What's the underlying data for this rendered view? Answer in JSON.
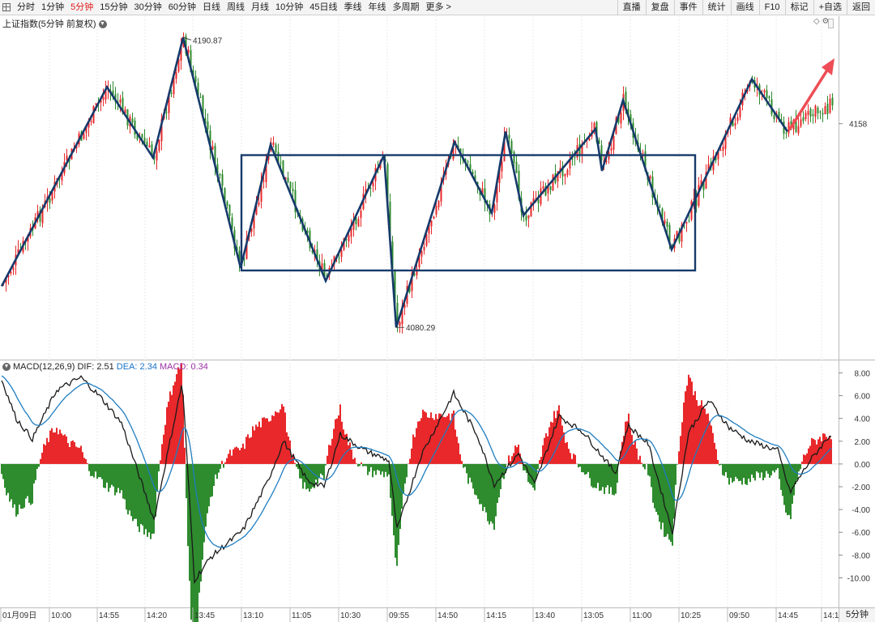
{
  "toolbar": {
    "periods": [
      {
        "label": "分时",
        "active": false
      },
      {
        "label": "1分钟",
        "active": false
      },
      {
        "label": "5分钟",
        "active": true
      },
      {
        "label": "15分钟",
        "active": false
      },
      {
        "label": "30分钟",
        "active": false
      },
      {
        "label": "60分钟",
        "active": false
      },
      {
        "label": "日线",
        "active": false
      },
      {
        "label": "周线",
        "active": false
      },
      {
        "label": "月线",
        "active": false
      },
      {
        "label": "10分钟",
        "active": false
      },
      {
        "label": "45日线",
        "active": false
      },
      {
        "label": "季线",
        "active": false
      },
      {
        "label": "年线",
        "active": false
      },
      {
        "label": "多周期",
        "active": false
      },
      {
        "label": "更多 >",
        "active": false
      }
    ],
    "tools": [
      "直播",
      "复盘",
      "事件",
      "统计",
      "画线",
      "F10",
      "标记",
      "+自选",
      "返回"
    ]
  },
  "main_panel": {
    "title": "上证指数(5分钟 前复权)",
    "high_label": "4190.87",
    "low_label": "4080.29",
    "price_axis_label": "4158"
  },
  "macd_panel": {
    "title": "MACD(12,26,9)",
    "dif_text": "DIF: 2.51",
    "dea_text": "DEA: 2.34",
    "macd_text": "MACD: 0.34"
  },
  "bottom_right_label": "5分钟",
  "colors": {
    "up": "#e8282b",
    "down": "#2e8b2e",
    "dif": "#1a1a1a",
    "dea": "#1f7ec1",
    "zigzag": "#163a6b",
    "box": "#163a6b",
    "arrow": "#ee4d55"
  },
  "chart_data": [
    {
      "type": "candlestick",
      "title": "上证指数(5分钟 前复权)",
      "ylim": [
        4068,
        4199
      ],
      "y_ticks": [
        4158
      ],
      "annotations": [
        {
          "text": "4190.87",
          "x": "14:20",
          "y": 4190.87
        },
        {
          "text": "4080.29",
          "x": "09:55",
          "y": 4080.29
        }
      ],
      "zigzag": [
        {
          "x": "01月09日",
          "y": 4096
        },
        {
          "x": "14:55",
          "y": 4172
        },
        {
          "x": "14:20",
          "y": 4145
        },
        {
          "x": "14:20",
          "y": 4190.87
        },
        {
          "x": "13:10",
          "y": 4103
        },
        {
          "x": "13:10",
          "y": 4150
        },
        {
          "x": "11:05",
          "y": 4098
        },
        {
          "x": "10:30",
          "y": 4146
        },
        {
          "x": "09:55",
          "y": 4080.29
        },
        {
          "x": "14:50",
          "y": 4151
        },
        {
          "x": "14:15",
          "y": 4124
        },
        {
          "x": "14:15",
          "y": 4155
        },
        {
          "x": "13:40",
          "y": 4123
        },
        {
          "x": "13:05",
          "y": 4156
        },
        {
          "x": "13:05",
          "y": 4140
        },
        {
          "x": "13:05",
          "y": 4167
        },
        {
          "x": "10:25",
          "y": 4110
        },
        {
          "x": "09:50",
          "y": 4175
        },
        {
          "x": "14:45",
          "y": 4155
        }
      ],
      "range_box": {
        "x_from": "13:10",
        "x_to": "10:25",
        "y_low": 4102,
        "y_high": 4146
      },
      "trend_arrow": {
        "from": {
          "x": "14:45",
          "y": 4156
        },
        "to": {
          "x": "14:1",
          "y": 4182
        }
      }
    },
    {
      "type": "bar+line",
      "title": "MACD(12,26,9)",
      "ylim": [
        -12.6,
        9.1
      ],
      "y_ticks": [
        8.0,
        6.0,
        4.0,
        2.0,
        0.0,
        -2.0,
        -4.0,
        -6.0,
        -8.0,
        -10.0
      ],
      "y_tick_labels": [
        "8.00",
        "6.00",
        "4.00",
        "2.00",
        "0.00",
        "-2.00",
        "-4.00",
        "-6.00",
        "-8.00",
        "-10.00"
      ],
      "series": [
        {
          "name": "DIF",
          "last": 2.51
        },
        {
          "name": "DEA",
          "last": 2.34
        },
        {
          "name": "MACD",
          "last": 0.34
        }
      ]
    }
  ],
  "x_axis": {
    "labels": [
      "01月09日",
      "10:00",
      "14:55",
      "14:20",
      "13:45",
      "13:10",
      "11:05",
      "10:30",
      "09:55",
      "14:50",
      "14:15",
      "13:40",
      "13:05",
      "11:00",
      "10:25",
      "09:50",
      "14:45",
      "14:1"
    ]
  }
}
